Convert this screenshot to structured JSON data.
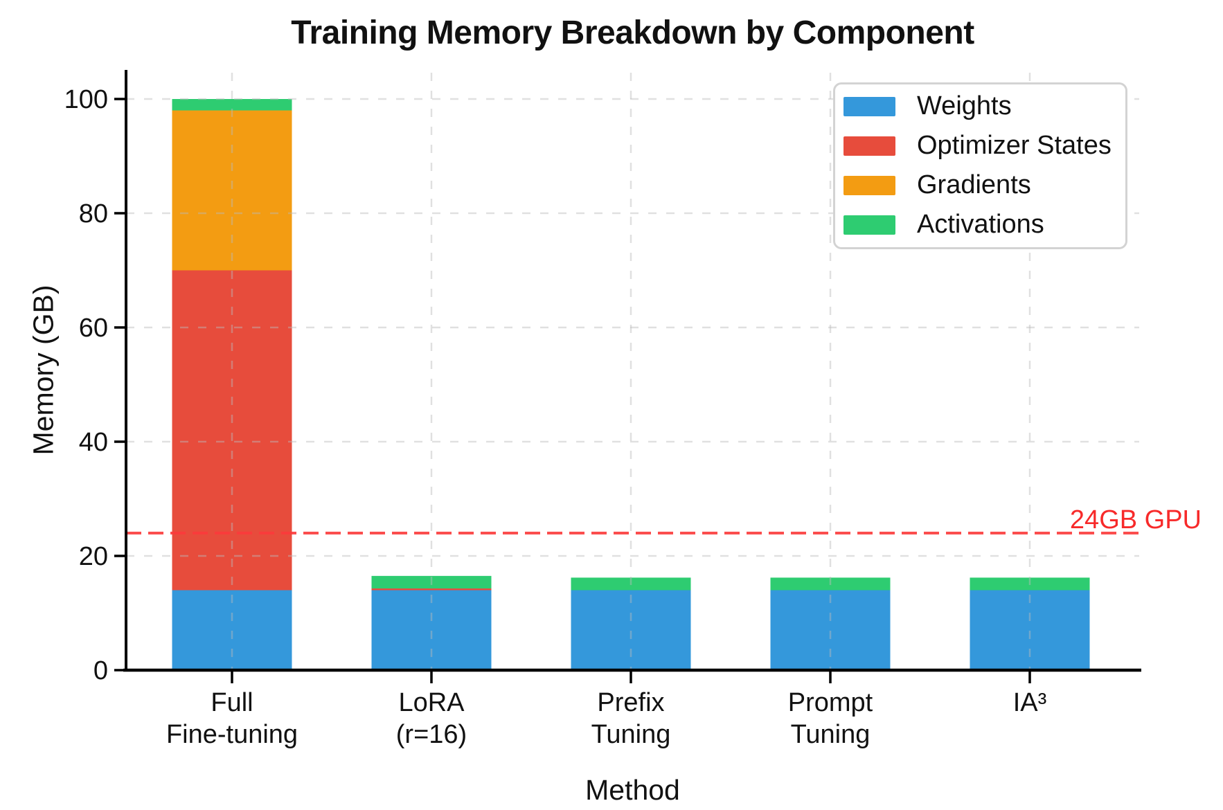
{
  "page": {
    "background": "#ffffff",
    "text_color": "#111111"
  },
  "chart_data": {
    "type": "bar",
    "stacked": true,
    "title": "Training Memory Breakdown by Component",
    "xlabel": "Method",
    "ylabel": "Memory (GB)",
    "ylim": [
      0,
      105
    ],
    "yticks": [
      0,
      20,
      40,
      60,
      80,
      100
    ],
    "grid": true,
    "grid_color": "#d8d8d8",
    "legend_position": "upper right",
    "categories": [
      "Full Fine-tuning",
      "LoRA (r=16)",
      "Prefix Tuning",
      "Prompt Tuning",
      "IA³"
    ],
    "category_lines": [
      [
        "Full",
        "Fine-tuning"
      ],
      [
        "LoRA",
        "(r=16)"
      ],
      [
        "Prefix",
        "Tuning"
      ],
      [
        "Prompt",
        "Tuning"
      ],
      [
        "IA³"
      ]
    ],
    "series": [
      {
        "name": "Weights",
        "color": "#3498db",
        "values": [
          14,
          14,
          14,
          14,
          14
        ]
      },
      {
        "name": "Optimizer States",
        "color": "#e74c3c",
        "values": [
          56,
          0.3,
          0,
          0,
          0
        ]
      },
      {
        "name": "Gradients",
        "color": "#f39c12",
        "values": [
          28,
          0,
          0,
          0,
          0
        ]
      },
      {
        "name": "Activations",
        "color": "#2ecc71",
        "values": [
          2,
          2.2,
          2.2,
          2.2,
          2.2
        ]
      }
    ],
    "annotation": {
      "label": "24GB GPU",
      "value": 24,
      "text_color": "#f72a2a",
      "line_color": "#fb3b3b"
    }
  }
}
